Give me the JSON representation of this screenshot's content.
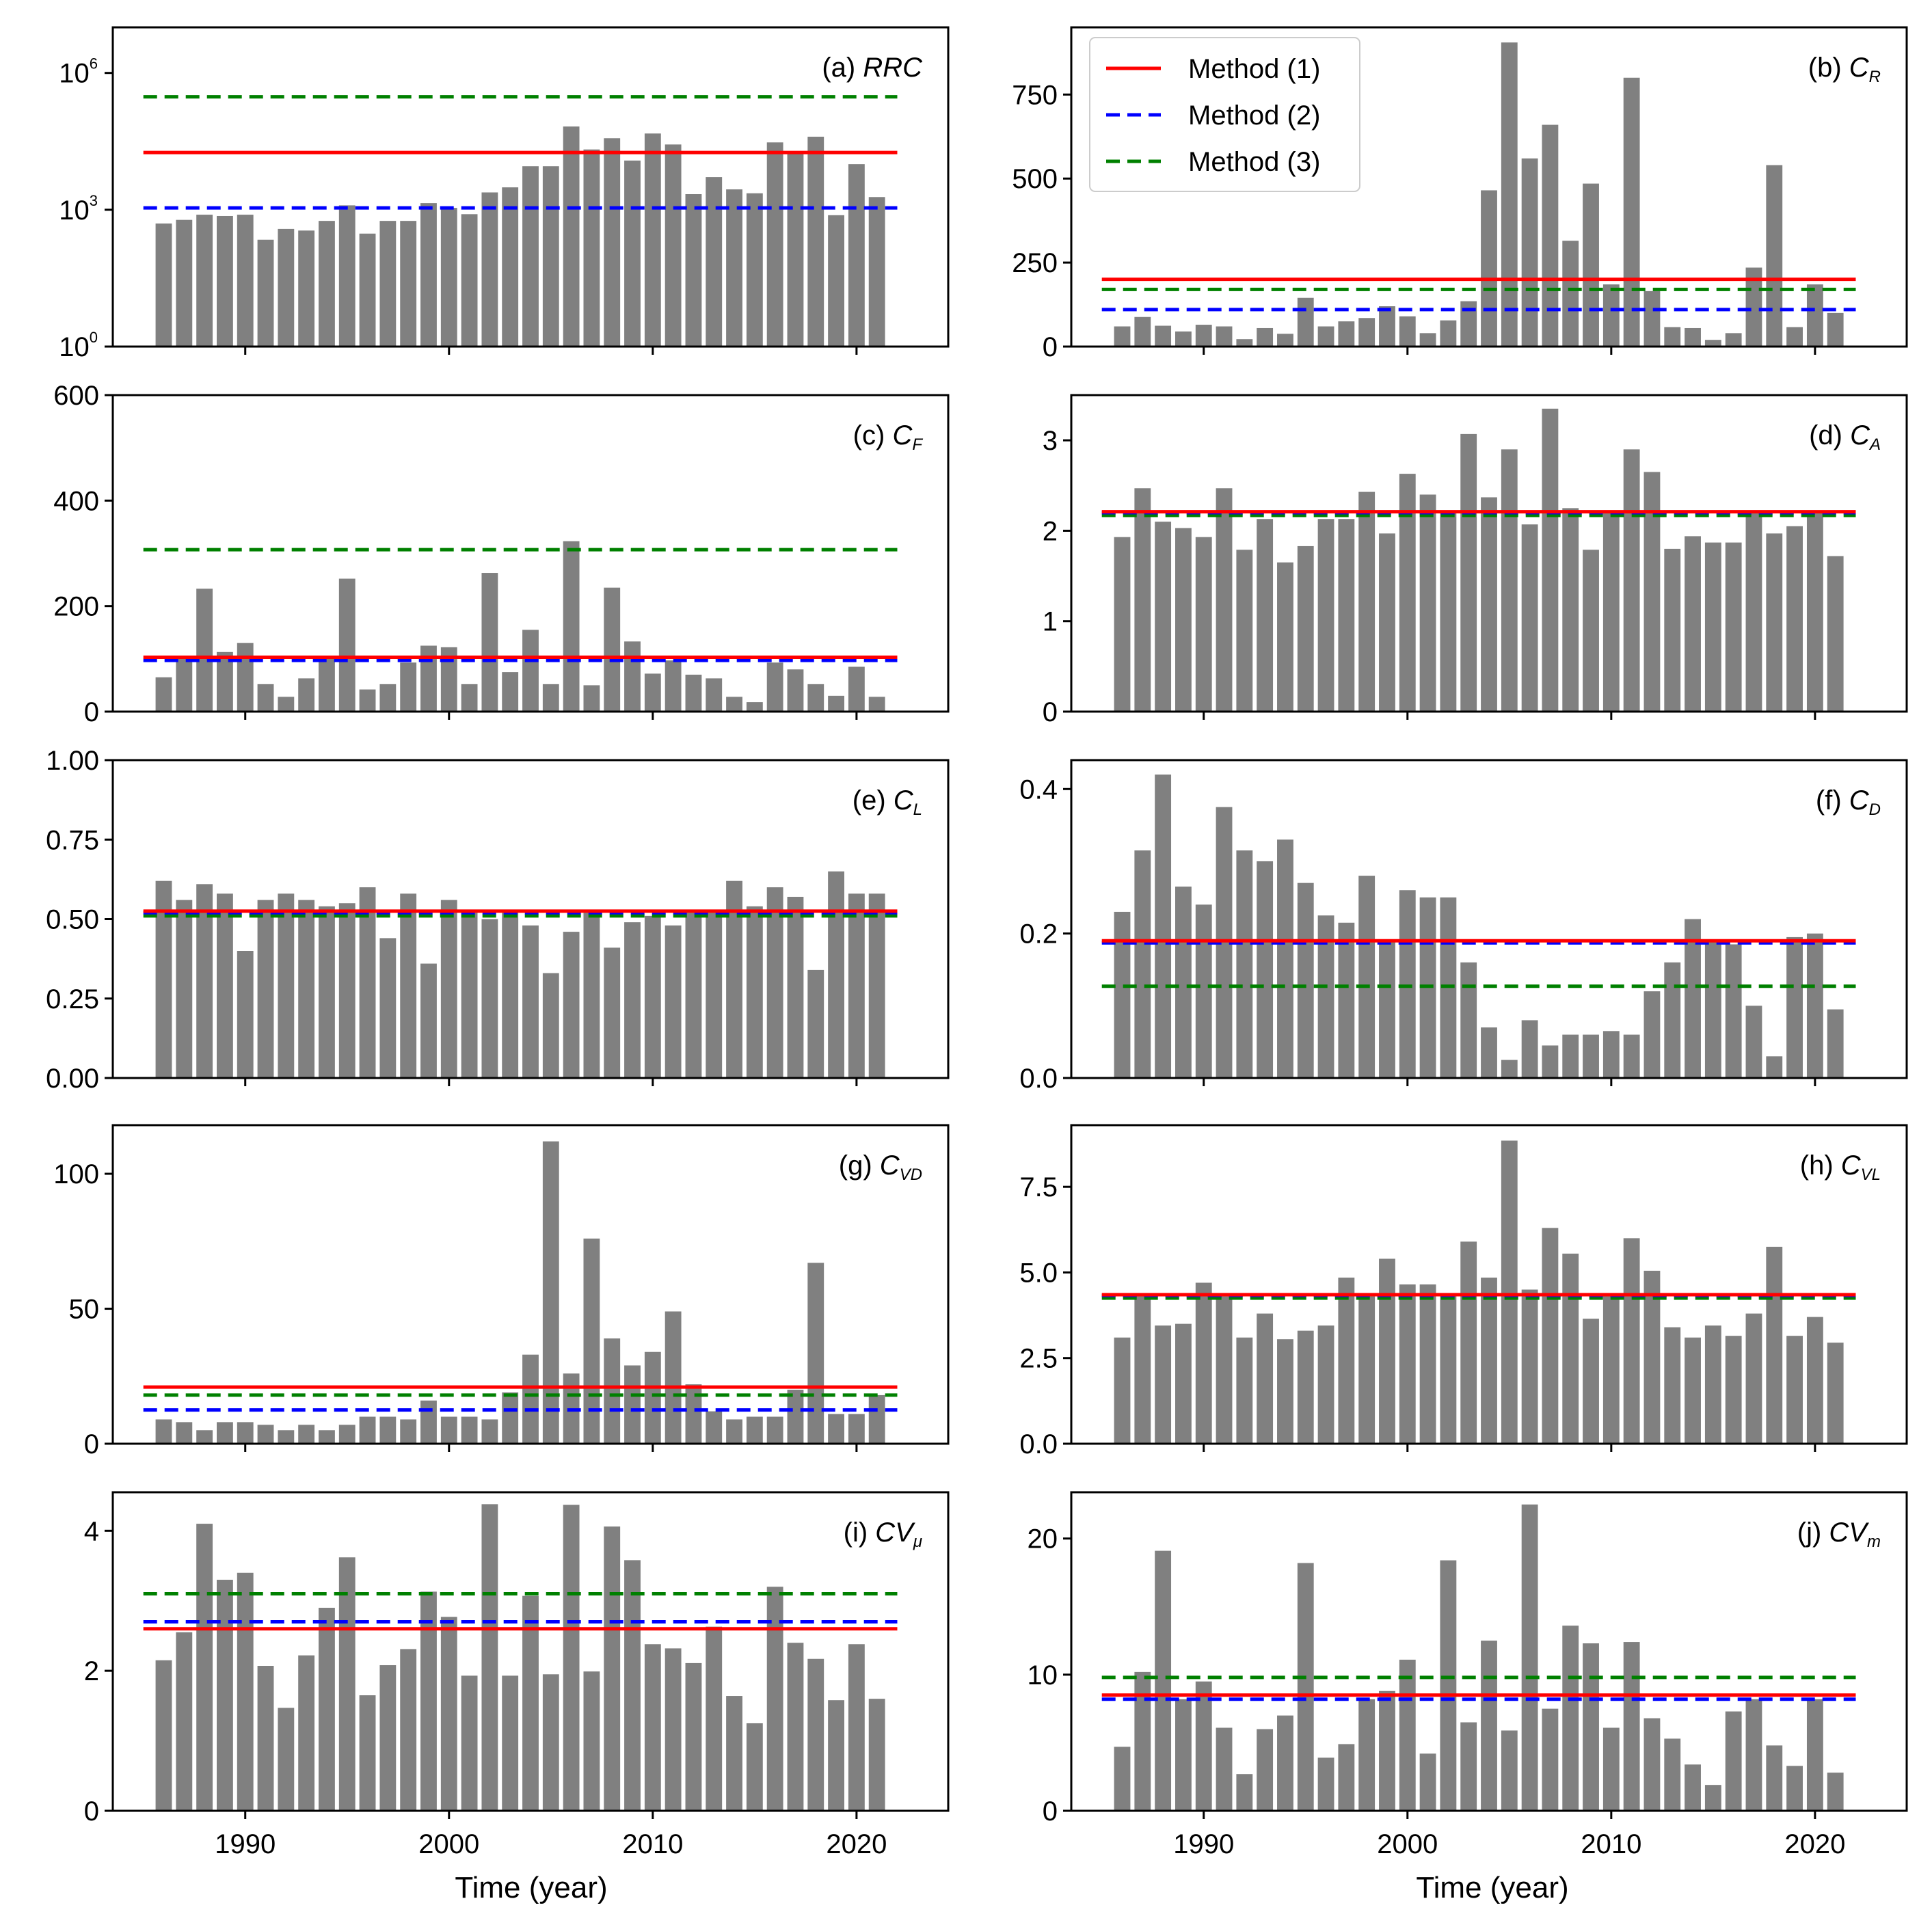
{
  "figure": {
    "xlabel": "Time (year)",
    "years": [
      1986,
      1987,
      1988,
      1989,
      1990,
      1991,
      1992,
      1993,
      1994,
      1995,
      1996,
      1997,
      1998,
      1999,
      2000,
      2001,
      2002,
      2003,
      2004,
      2005,
      2006,
      2007,
      2008,
      2009,
      2010,
      2011,
      2012,
      2013,
      2014,
      2015,
      2016,
      2017,
      2018,
      2019,
      2020,
      2021
    ],
    "xticks": [
      1990,
      2000,
      2010,
      2020
    ],
    "xlim": [
      1983.5,
      2024.5
    ],
    "bar_color": "#808080",
    "legend": {
      "location": "top-left of panel (b)",
      "entries": [
        {
          "label": "Method (1)",
          "color": "#ff0000",
          "style": "solid"
        },
        {
          "label": "Method (2)",
          "color": "#0000ff",
          "style": "dashed"
        },
        {
          "label": "Method (3)",
          "color": "#008000",
          "style": "dashed"
        }
      ]
    }
  },
  "chart_data": [
    {
      "id": "a",
      "type": "bar",
      "scale": "log",
      "title_prefix": "(a) ",
      "title_main": "RRC",
      "title_sub": "",
      "ylim": [
        1,
        10000000
      ],
      "yticks": [
        1,
        1000,
        1000000
      ],
      "ytick_labels": [
        [
          "10",
          "0"
        ],
        [
          "10",
          "3"
        ],
        [
          "10",
          "6"
        ]
      ],
      "values": [
        500,
        600,
        780,
        730,
        780,
        220,
        380,
        350,
        570,
        1250,
        300,
        570,
        570,
        1400,
        1100,
        800,
        2400,
        3100,
        9000,
        9000,
        67000,
        21000,
        37000,
        12000,
        47000,
        27000,
        2200,
        5200,
        2800,
        2300,
        30000,
        18000,
        40000,
        760,
        10000,
        1900
      ],
      "lines": {
        "method1": 18000,
        "method2": 1100,
        "method3": 300000
      }
    },
    {
      "id": "b",
      "type": "bar",
      "scale": "linear",
      "title_prefix": "(b) ",
      "title_main": "C",
      "title_sub": "R",
      "ylim": [
        0,
        950
      ],
      "yticks": [
        0,
        250,
        500,
        750
      ],
      "ytick_labels": [
        "0",
        "250",
        "500",
        "750"
      ],
      "values": [
        60,
        88,
        62,
        45,
        65,
        60,
        22,
        55,
        38,
        145,
        60,
        75,
        85,
        120,
        90,
        40,
        78,
        135,
        465,
        905,
        560,
        660,
        315,
        485,
        185,
        800,
        165,
        58,
        55,
        20,
        40,
        235,
        540,
        58,
        185,
        100
      ],
      "lines": {
        "method1": 200,
        "method2": 110,
        "method3": 170
      }
    },
    {
      "id": "c",
      "type": "bar",
      "scale": "linear",
      "title_prefix": "(c) ",
      "title_main": "C",
      "title_sub": "F",
      "ylim": [
        0,
        600
      ],
      "yticks": [
        0,
        200,
        400,
        600
      ],
      "ytick_labels": [
        "0",
        "200",
        "400",
        "600"
      ],
      "values": [
        65,
        105,
        233,
        113,
        130,
        52,
        28,
        63,
        100,
        252,
        42,
        52,
        93,
        125,
        122,
        52,
        263,
        75,
        155,
        52,
        323,
        50,
        235,
        133,
        72,
        97,
        70,
        63,
        28,
        18,
        93,
        80,
        52,
        30,
        85,
        28
      ],
      "lines": {
        "method1": 103,
        "method2": 97,
        "method3": 307
      }
    },
    {
      "id": "d",
      "type": "bar",
      "scale": "linear",
      "title_prefix": "(d) ",
      "title_main": "C",
      "title_sub": "A",
      "ylim": [
        0,
        3.5
      ],
      "yticks": [
        0,
        1,
        2,
        3
      ],
      "ytick_labels": [
        "0",
        "1",
        "2",
        "3"
      ],
      "values": [
        1.93,
        2.47,
        2.1,
        2.03,
        1.93,
        2.47,
        1.79,
        2.13,
        1.65,
        1.83,
        2.13,
        2.13,
        2.43,
        1.97,
        2.63,
        2.4,
        2.2,
        3.07,
        2.37,
        2.9,
        2.07,
        3.35,
        2.25,
        1.79,
        2.2,
        2.9,
        2.65,
        1.8,
        1.94,
        1.87,
        1.87,
        2.2,
        1.97,
        2.05,
        2.2,
        1.72
      ],
      "lines": {
        "method1": 2.21,
        "method2": 2.2,
        "method3": 2.17
      }
    },
    {
      "id": "e",
      "type": "bar",
      "scale": "linear",
      "title_prefix": "(e) ",
      "title_main": "C",
      "title_sub": "L",
      "ylim": [
        0,
        1.0
      ],
      "yticks": [
        0,
        0.25,
        0.5,
        0.75,
        1.0
      ],
      "ytick_labels": [
        "0.00",
        "0.25",
        "0.50",
        "0.75",
        "1.00"
      ],
      "values": [
        0.62,
        0.56,
        0.61,
        0.58,
        0.4,
        0.56,
        0.58,
        0.56,
        0.54,
        0.55,
        0.6,
        0.44,
        0.58,
        0.36,
        0.56,
        0.52,
        0.5,
        0.52,
        0.48,
        0.33,
        0.46,
        0.52,
        0.41,
        0.49,
        0.51,
        0.48,
        0.52,
        0.52,
        0.62,
        0.54,
        0.6,
        0.57,
        0.34,
        0.65,
        0.58,
        0.58
      ],
      "lines": {
        "method1": 0.525,
        "method2": 0.52,
        "method3": 0.51
      }
    },
    {
      "id": "f",
      "type": "bar",
      "scale": "linear",
      "title_prefix": "(f) ",
      "title_main": "C",
      "title_sub": "D",
      "ylim": [
        0,
        0.44
      ],
      "yticks": [
        0,
        0.2,
        0.4
      ],
      "ytick_labels": [
        "0.0",
        "0.2",
        "0.4"
      ],
      "values": [
        0.23,
        0.315,
        0.42,
        0.265,
        0.24,
        0.375,
        0.315,
        0.3,
        0.33,
        0.27,
        0.225,
        0.215,
        0.28,
        0.19,
        0.26,
        0.25,
        0.25,
        0.16,
        0.07,
        0.025,
        0.08,
        0.045,
        0.06,
        0.06,
        0.065,
        0.06,
        0.12,
        0.16,
        0.22,
        0.19,
        0.185,
        0.1,
        0.03,
        0.195,
        0.2,
        0.095
      ],
      "lines": {
        "method1": 0.19,
        "method2": 0.187,
        "method3": 0.127
      }
    },
    {
      "id": "g",
      "type": "bar",
      "scale": "linear",
      "title_prefix": "(g) ",
      "title_main": "C",
      "title_sub": "VD",
      "ylim": [
        0,
        118
      ],
      "yticks": [
        0,
        50,
        100
      ],
      "ytick_labels": [
        "0",
        "50",
        "100"
      ],
      "values": [
        9,
        8,
        5,
        8,
        8,
        7,
        5,
        7,
        5,
        7,
        10,
        10,
        9,
        16,
        10,
        10,
        9,
        19,
        33,
        112,
        26,
        76,
        39,
        29,
        34,
        49,
        22,
        12,
        9,
        10,
        10,
        20,
        67,
        11,
        11,
        18
      ],
      "lines": {
        "method1": 21,
        "method2": 12.5,
        "method3": 18
      }
    },
    {
      "id": "h",
      "type": "bar",
      "scale": "linear",
      "title_prefix": "(h) ",
      "title_main": "C",
      "title_sub": "VL",
      "ylim": [
        0,
        9.3
      ],
      "yticks": [
        0,
        2.5,
        5.0,
        7.5
      ],
      "ytick_labels": [
        "0.0",
        "2.5",
        "5.0",
        "7.5"
      ],
      "values": [
        3.1,
        4.35,
        3.45,
        3.5,
        4.7,
        4.3,
        3.1,
        3.8,
        3.05,
        3.3,
        3.45,
        4.85,
        4.3,
        5.4,
        4.65,
        4.65,
        4.4,
        5.9,
        4.85,
        8.85,
        4.5,
        6.3,
        5.55,
        3.65,
        4.4,
        6.0,
        5.05,
        3.4,
        3.1,
        3.45,
        3.15,
        3.8,
        5.75,
        3.15,
        3.7,
        2.95
      ],
      "lines": {
        "method1": 4.35,
        "method2": 4.33,
        "method3": 4.25
      }
    },
    {
      "id": "i",
      "type": "bar",
      "scale": "linear",
      "title_prefix": "(i) ",
      "title_main": "CV",
      "title_sub": "μ",
      "ylim": [
        0,
        4.55
      ],
      "yticks": [
        0,
        2,
        4
      ],
      "ytick_labels": [
        "0",
        "2",
        "4"
      ],
      "values": [
        2.15,
        2.55,
        4.1,
        3.3,
        3.4,
        2.07,
        1.47,
        2.22,
        2.9,
        3.62,
        1.65,
        2.08,
        2.31,
        3.13,
        2.77,
        1.93,
        4.38,
        1.93,
        3.07,
        1.95,
        4.37,
        1.99,
        4.06,
        3.58,
        2.38,
        2.32,
        2.11,
        2.63,
        1.64,
        1.25,
        3.2,
        2.4,
        2.17,
        1.58,
        2.38,
        1.6
      ],
      "lines": {
        "method1": 2.6,
        "method2": 2.7,
        "method3": 3.1
      }
    },
    {
      "id": "j",
      "type": "bar",
      "scale": "linear",
      "title_prefix": "(j) ",
      "title_main": "CV",
      "title_sub": "m",
      "ylim": [
        0,
        23.4
      ],
      "yticks": [
        0,
        10,
        20
      ],
      "ytick_labels": [
        "0",
        "10",
        "20"
      ],
      "values": [
        4.7,
        10.2,
        19.1,
        8.2,
        9.5,
        6.1,
        2.7,
        6.0,
        7.0,
        18.2,
        3.9,
        4.9,
        8.2,
        8.8,
        11.1,
        4.2,
        18.4,
        6.5,
        12.5,
        5.9,
        22.5,
        7.5,
        13.6,
        12.3,
        6.1,
        12.4,
        6.8,
        5.3,
        3.4,
        1.9,
        7.3,
        8.2,
        4.8,
        3.3,
        8.2,
        2.8
      ],
      "lines": {
        "method1": 8.5,
        "method2": 8.2,
        "method3": 9.8
      }
    }
  ]
}
